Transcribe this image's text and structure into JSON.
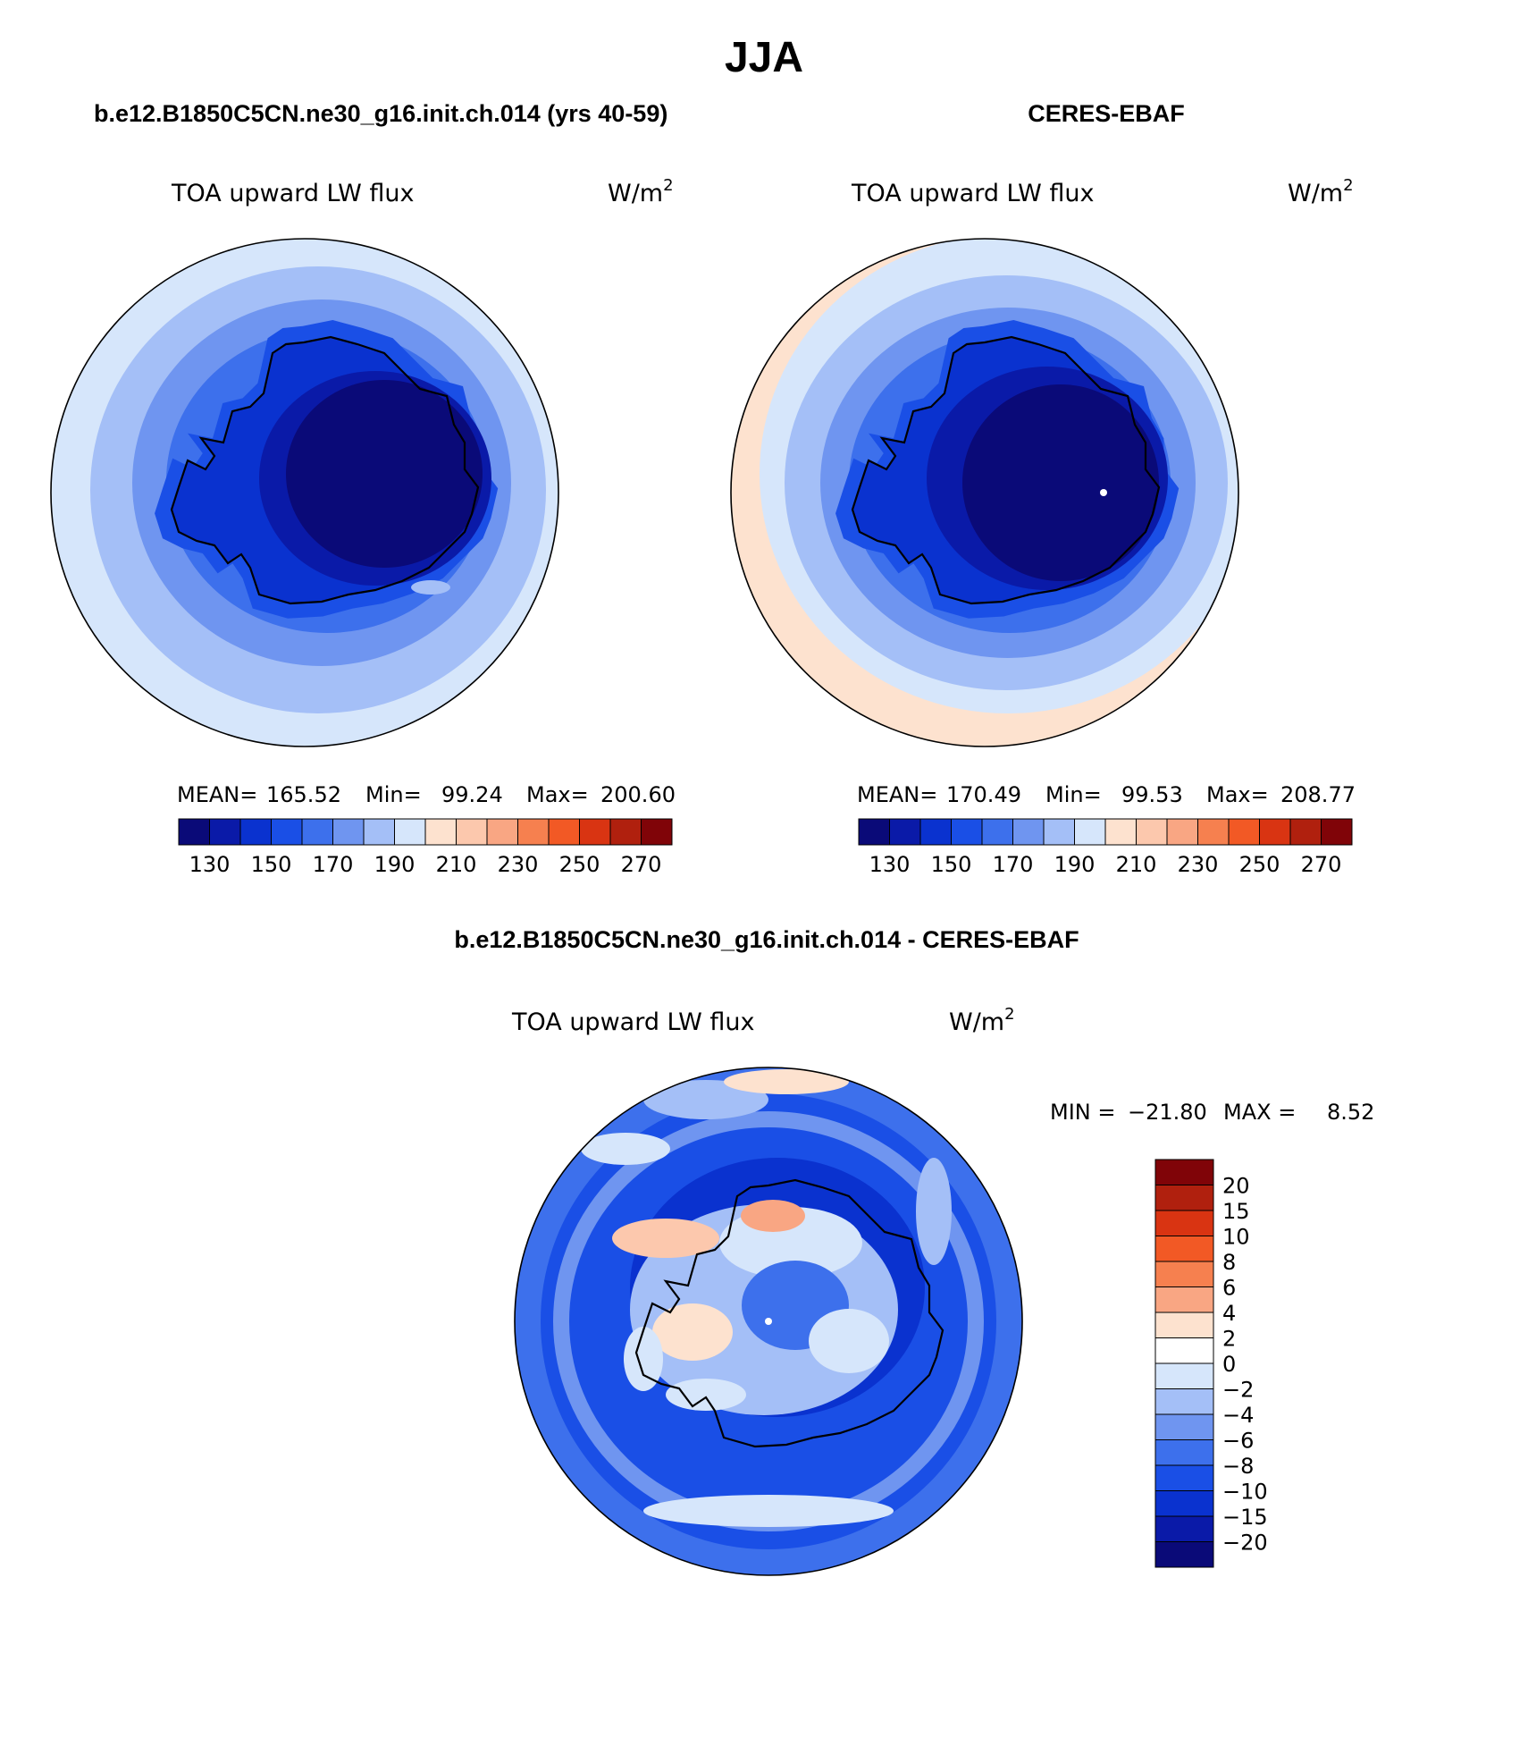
{
  "figure": {
    "title": "JJA"
  },
  "panels": {
    "model": {
      "header": "b.e12.B1850C5CN.ne30_g16.init.ch.014 (yrs 40-59)",
      "variable": "TOA upward LW flux",
      "units_base": "W/m",
      "units_exp": "2",
      "stats": {
        "mean_label": "MEAN=",
        "mean": "165.52",
        "min_label": "Min=",
        "min": "99.24",
        "max_label": "Max=",
        "max": "200.60"
      }
    },
    "obs": {
      "header": "CERES-EBAF",
      "variable": "TOA upward LW flux",
      "units_base": "W/m",
      "units_exp": "2",
      "stats": {
        "mean_label": "MEAN=",
        "mean": "170.49",
        "min_label": "Min=",
        "min": "99.53",
        "max_label": "Max=",
        "max": "208.77"
      }
    },
    "diff": {
      "header": "b.e12.B1850C5CN.ne30_g16.init.ch.014 - CERES-EBAF",
      "variable": "TOA upward LW flux",
      "units_base": "W/m",
      "units_exp": "2",
      "minmax": {
        "min_label": "MIN =",
        "min": "−21.80",
        "max_label": "MAX =",
        "max": "8.52"
      }
    }
  },
  "chart_data": {
    "type": "polar-stereographic contour maps (south pole)",
    "abs_colorbar": {
      "levels": [
        120,
        130,
        140,
        150,
        160,
        170,
        180,
        190,
        200,
        210,
        220,
        230,
        240,
        250,
        260,
        270,
        280
      ],
      "tick_labels": [
        "130",
        "150",
        "170",
        "190",
        "210",
        "230",
        "250",
        "270"
      ],
      "colors": [
        "#0a0a78",
        "#0a1aa8",
        "#0a32cf",
        "#1a4fe6",
        "#3d70ec",
        "#6f95f0",
        "#a4bff7",
        "#d6e6fb",
        "#fde2cf",
        "#fcc8ad",
        "#f9a683",
        "#f6804f",
        "#f25925",
        "#d93412",
        "#b0200e",
        "#800408"
      ]
    },
    "diff_colorbar": {
      "tick_labels": [
        "20",
        "15",
        "10",
        "8",
        "6",
        "4",
        "2",
        "0",
        "−2",
        "−4",
        "−6",
        "−8",
        "−10",
        "−15",
        "−20"
      ],
      "colors_top_to_bottom": [
        "#800408",
        "#b0200e",
        "#d93412",
        "#f25925",
        "#f6804f",
        "#f9a683",
        "#fde2cf",
        "#ffffff",
        "#d6e6fb",
        "#a4bff7",
        "#6f95f0",
        "#3d70ec",
        "#1a4fe6",
        "#0a32cf",
        "#0a1aa8",
        "#0a0a78"
      ]
    }
  }
}
